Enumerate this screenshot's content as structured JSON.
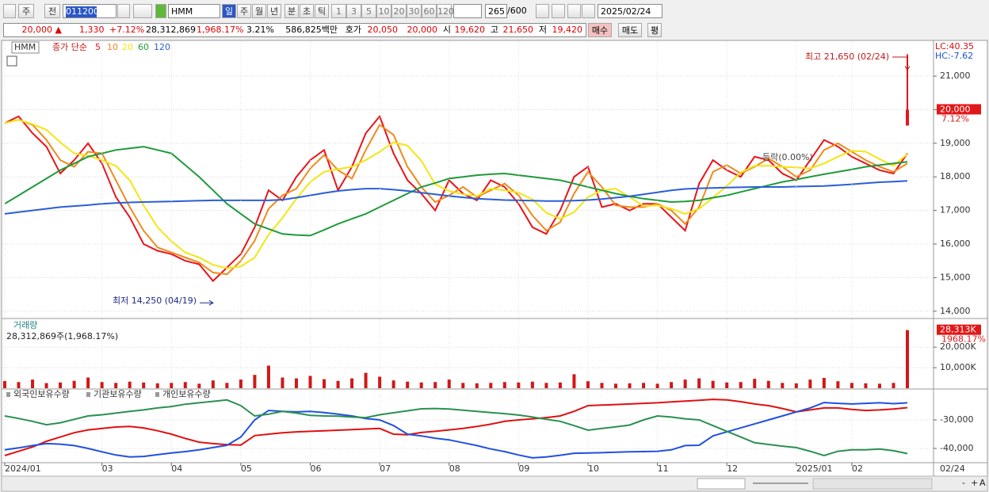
{
  "toolbar": {
    "period": "주",
    "prev": "전",
    "code": "011200",
    "name": "HMM",
    "intervals": [
      "일",
      "주",
      "월",
      "년",
      "분",
      "초",
      "틱"
    ],
    "counts": [
      1,
      3,
      5,
      10,
      20,
      30,
      60,
      120
    ],
    "shown": "265",
    "total": "/600",
    "date": "2025/02/24"
  },
  "quote": [
    {
      "text": "20,000 ▲",
      "color": "#e00000"
    },
    {
      "text": "1,330",
      "color": "#e00000"
    },
    {
      "text": "+7.12%",
      "color": "#e00000"
    },
    {
      "text": "28,312,869",
      "color": "#000000"
    },
    {
      "text": "1,968.17%",
      "color": "#e00000"
    },
    {
      "text": "3.21%",
      "color": "#000000"
    },
    {
      "text": "586,825백만",
      "color": "#000000"
    },
    {
      "text": "호가",
      "color": "#000000"
    },
    {
      "text": "20,050",
      "color": "#e00000"
    },
    {
      "text": "20,000",
      "color": "#e00000"
    },
    {
      "text": "시",
      "color": "#000000"
    },
    {
      "text": "19,620",
      "color": "#e00000"
    },
    {
      "text": "고",
      "color": "#000000"
    },
    {
      "text": "21,650",
      "color": "#e00000"
    },
    {
      "text": "저",
      "color": "#000000"
    },
    {
      "text": "19,420",
      "color": "#e00000"
    }
  ],
  "orders": [
    "매수",
    "매도",
    "평"
  ],
  "footer": [
    "-",
    "+",
    "A"
  ],
  "chart_data": [
    {
      "type": "line",
      "title": "HMM",
      "legend_title": "종가 단순",
      "categories": [
        "2024/01",
        null,
        null,
        null,
        null,
        null,
        null,
        "03",
        null,
        null,
        null,
        null,
        "04",
        null,
        null,
        null,
        null,
        "05",
        null,
        null,
        null,
        null,
        "06",
        null,
        null,
        null,
        null,
        "07",
        null,
        null,
        null,
        null,
        "08",
        null,
        null,
        null,
        null,
        "09",
        null,
        null,
        null,
        null,
        "10",
        null,
        null,
        null,
        null,
        "11",
        null,
        null,
        null,
        null,
        "12",
        null,
        null,
        null,
        null,
        "2025/01",
        null,
        null,
        null,
        "02",
        null,
        null,
        null,
        null
      ],
      "series": [
        {
          "name": "5",
          "color": "#e8141b",
          "values": [
            19600,
            19800,
            19300,
            18900,
            18100,
            18500,
            19000,
            18400,
            17400,
            16800,
            16000,
            15800,
            15700,
            15500,
            15400,
            14900,
            15300,
            15700,
            16500,
            17600,
            17300,
            18000,
            18500,
            18800,
            17600,
            18300,
            19300,
            19800,
            18700,
            17900,
            17500,
            17000,
            17900,
            17500,
            17300,
            17900,
            17700,
            17200,
            16500,
            16300,
            17000,
            18000,
            18300,
            17100,
            17200,
            17000,
            17200,
            17200,
            16800,
            16400,
            17800,
            18500,
            18200,
            18000,
            18600,
            18500,
            18100,
            17900,
            18500,
            19100,
            18900,
            18600,
            18400,
            18200,
            18100,
            18700
          ]
        },
        {
          "name": "10",
          "color": "#f08a1c",
          "values": [
            19600,
            19700,
            19550,
            19100,
            18500,
            18300,
            18750,
            18700,
            17900,
            17100,
            16400,
            15900,
            15750,
            15600,
            15450,
            15150,
            15100,
            15500,
            16100,
            17050,
            17450,
            17650,
            18250,
            18650,
            18200,
            17950,
            18800,
            19550,
            19250,
            18300,
            17700,
            17250,
            17450,
            17700,
            17400,
            17600,
            17800,
            17450,
            16850,
            16400,
            16650,
            17500,
            18150,
            17700,
            17150,
            17100,
            17100,
            17200,
            17000,
            16600,
            17100,
            18150,
            18350,
            18100,
            18300,
            18550,
            18300,
            18000,
            18200,
            18800,
            19000,
            18750,
            18500,
            18300,
            18150,
            18400
          ]
        },
        {
          "name": "20",
          "color": "#f2e615",
          "values": [
            19600,
            19700,
            19570,
            19400,
            19030,
            18700,
            18630,
            18500,
            18330,
            17900,
            17150,
            16500,
            16080,
            15750,
            15600,
            15380,
            15280,
            15330,
            15600,
            16280,
            16780,
            17350,
            17850,
            18150,
            18230,
            18300,
            18500,
            18750,
            19030,
            18930,
            18480,
            17780,
            17580,
            17480,
            17430,
            17650,
            17600,
            17530,
            17330,
            16930,
            16750,
            16950,
            17400,
            17600,
            17650,
            17400,
            17130,
            17150,
            17050,
            16900,
            17050,
            17380,
            17730,
            18130,
            18330,
            18330,
            18300,
            18280,
            18250,
            18400,
            18600,
            18780,
            18750,
            18530,
            18330,
            18680
          ]
        },
        {
          "name": "60",
          "color": "#1f9a3a",
          "values": [
            17200,
            17450,
            17700,
            17950,
            18200,
            18400,
            18600,
            18700,
            18800,
            18850,
            18900,
            18800,
            18700,
            18350,
            18000,
            17600,
            17200,
            16900,
            16600,
            16450,
            16300,
            16270,
            16250,
            16420,
            16600,
            16750,
            16900,
            17100,
            17300,
            17500,
            17700,
            17820,
            17950,
            18000,
            18050,
            18080,
            18100,
            18050,
            18000,
            17950,
            17900,
            17800,
            17700,
            17600,
            17500,
            17420,
            17350,
            17300,
            17250,
            17270,
            17300,
            17380,
            17450,
            17550,
            17650,
            17750,
            17850,
            17920,
            18000,
            18080,
            18150,
            18220,
            18300,
            18350,
            18400,
            18450
          ]
        },
        {
          "name": "120",
          "color": "#2a5ed8",
          "values": [
            16900,
            16950,
            17000,
            17050,
            17100,
            17130,
            17160,
            17200,
            17220,
            17240,
            17250,
            17260,
            17270,
            17280,
            17290,
            17300,
            17300,
            17300,
            17300,
            17300,
            17320,
            17380,
            17450,
            17520,
            17580,
            17620,
            17650,
            17650,
            17620,
            17580,
            17530,
            17480,
            17430,
            17390,
            17350,
            17330,
            17310,
            17300,
            17290,
            17280,
            17280,
            17290,
            17310,
            17340,
            17380,
            17420,
            17480,
            17540,
            17600,
            17640,
            17660,
            17670,
            17680,
            17690,
            17700,
            17700,
            17700,
            17710,
            17720,
            17730,
            17750,
            17780,
            17810,
            17840,
            17860,
            17880
          ]
        }
      ],
      "ylim": [
        13830,
        22040
      ],
      "yticks": [
        {
          "value": 14000,
          "label": "14,000"
        },
        {
          "value": 15000,
          "label": "15,000"
        },
        {
          "value": 16000,
          "label": "16,000"
        },
        {
          "value": 17000,
          "label": "17,000"
        },
        {
          "value": 18000,
          "label": "18,000"
        },
        {
          "value": 19000,
          "label": "19,000"
        },
        {
          "value": 20000,
          "label": "20,000"
        },
        {
          "value": 21000,
          "label": "21,000"
        }
      ],
      "grid": true,
      "high": {
        "value": 21650,
        "label": "최고 21,650 (02/24)"
      },
      "low": {
        "value": 14250,
        "label": "최저 14,250 (04/19)"
      },
      "last": {
        "value": 20000,
        "label": "20,000"
      },
      "last_change": "7.12%",
      "lc": "LC:40.35",
      "hc": "HC:-7.62",
      "note": "등락(0.00%)",
      "axis_end_label": "02/24"
    },
    {
      "type": "bar",
      "title": "거래량",
      "subtitle": "28,312,869주(1,968.17%)",
      "color": "#d01818",
      "values": [
        3500,
        3000,
        4200,
        2500,
        2800,
        3600,
        5200,
        3000,
        2600,
        3200,
        2800,
        2400,
        2600,
        3000,
        2200,
        3800,
        2600,
        4200,
        6500,
        11000,
        5200,
        4800,
        6000,
        4400,
        3600,
        4800,
        7500,
        5600,
        3800,
        3200,
        2800,
        3000,
        4200,
        2600,
        2400,
        2600,
        3000,
        2800,
        3200,
        2600,
        2800,
        6800,
        3400,
        2600,
        2200,
        2400,
        2600,
        2200,
        3000,
        4200,
        4800,
        3600,
        2800,
        3000,
        4600,
        3600,
        2600,
        2400,
        4200,
        5000,
        3400,
        2600,
        2400,
        2200,
        2600,
        28313
      ],
      "ylim": [
        0,
        33200
      ],
      "yticks": [
        {
          "value": 10000,
          "label": "10,000K"
        },
        {
          "value": 20000,
          "label": "20,000K"
        }
      ],
      "last": {
        "value": 28313,
        "label": "28,313K"
      },
      "last_change": "1968.17%"
    },
    {
      "type": "line",
      "series": [
        {
          "name": "외국인보유수량",
          "color": "#e01010",
          "values": [
            -42500,
            -41000,
            -39500,
            -37500,
            -36000,
            -34500,
            -33500,
            -33000,
            -32500,
            -32300,
            -32800,
            -33800,
            -35000,
            -36500,
            -37800,
            -38300,
            -38700,
            -38800,
            -35500,
            -35000,
            -34500,
            -34200,
            -34000,
            -33800,
            -33600,
            -33400,
            -33200,
            -33000,
            -35000,
            -35200,
            -34400,
            -34000,
            -33500,
            -33000,
            -32300,
            -31500,
            -30500,
            -30000,
            -29600,
            -29200,
            -28600,
            -27000,
            -25000,
            -24800,
            -24600,
            -24400,
            -24200,
            -24000,
            -23700,
            -23400,
            -23100,
            -22800,
            -23000,
            -23600,
            -24400,
            -25000,
            -26000,
            -27200,
            -26500,
            -25800,
            -25800,
            -26300,
            -26700,
            -26500,
            -26200,
            -25700
          ]
        },
        {
          "name": "기관보유수량",
          "color": "#2050e0",
          "values": [
            -40500,
            -39800,
            -39000,
            -38300,
            -38500,
            -39000,
            -40000,
            -41200,
            -42300,
            -43000,
            -42800,
            -42200,
            -41600,
            -41100,
            -40500,
            -39700,
            -38900,
            -36000,
            -30000,
            -26700,
            -27000,
            -27200,
            -27000,
            -27400,
            -28000,
            -28600,
            -29500,
            -30000,
            -32000,
            -35000,
            -35600,
            -36400,
            -37000,
            -38000,
            -39000,
            -40200,
            -41100,
            -42300,
            -43300,
            -43000,
            -42400,
            -41700,
            -41600,
            -41500,
            -41300,
            -41200,
            -41100,
            -41000,
            -40500,
            -39000,
            -38900,
            -35600,
            -34200,
            -32800,
            -31400,
            -30000,
            -28600,
            -27200,
            -25800,
            -23900,
            -24200,
            -24400,
            -24200,
            -24000,
            -24300,
            -24000
          ]
        },
        {
          "name": "개인보유수량",
          "color": "#2a9050",
          "values": [
            -28600,
            -29500,
            -30500,
            -31700,
            -31000,
            -29800,
            -28600,
            -28200,
            -27600,
            -27000,
            -26500,
            -25800,
            -25300,
            -24500,
            -24000,
            -23500,
            -23000,
            -25000,
            -28600,
            -28000,
            -27000,
            -27600,
            -28400,
            -28600,
            -28700,
            -29000,
            -29200,
            -28200,
            -27500,
            -26800,
            -26100,
            -26000,
            -26200,
            -26600,
            -27000,
            -27400,
            -27800,
            -28300,
            -29000,
            -29800,
            -30500,
            -32000,
            -33600,
            -33000,
            -32400,
            -31800,
            -30000,
            -28600,
            -29000,
            -29600,
            -30000,
            -32000,
            -34000,
            -36000,
            -38000,
            -38600,
            -39200,
            -39700,
            -41000,
            -42500,
            -41000,
            -40500,
            -40500,
            -40200,
            -40800,
            -41800
          ]
        }
      ],
      "ylim": [
        -44720,
        -19440
      ],
      "yticks": [
        {
          "value": -40000,
          "label": "-40,000"
        },
        {
          "value": -30000,
          "label": "-30,000"
        }
      ]
    }
  ]
}
